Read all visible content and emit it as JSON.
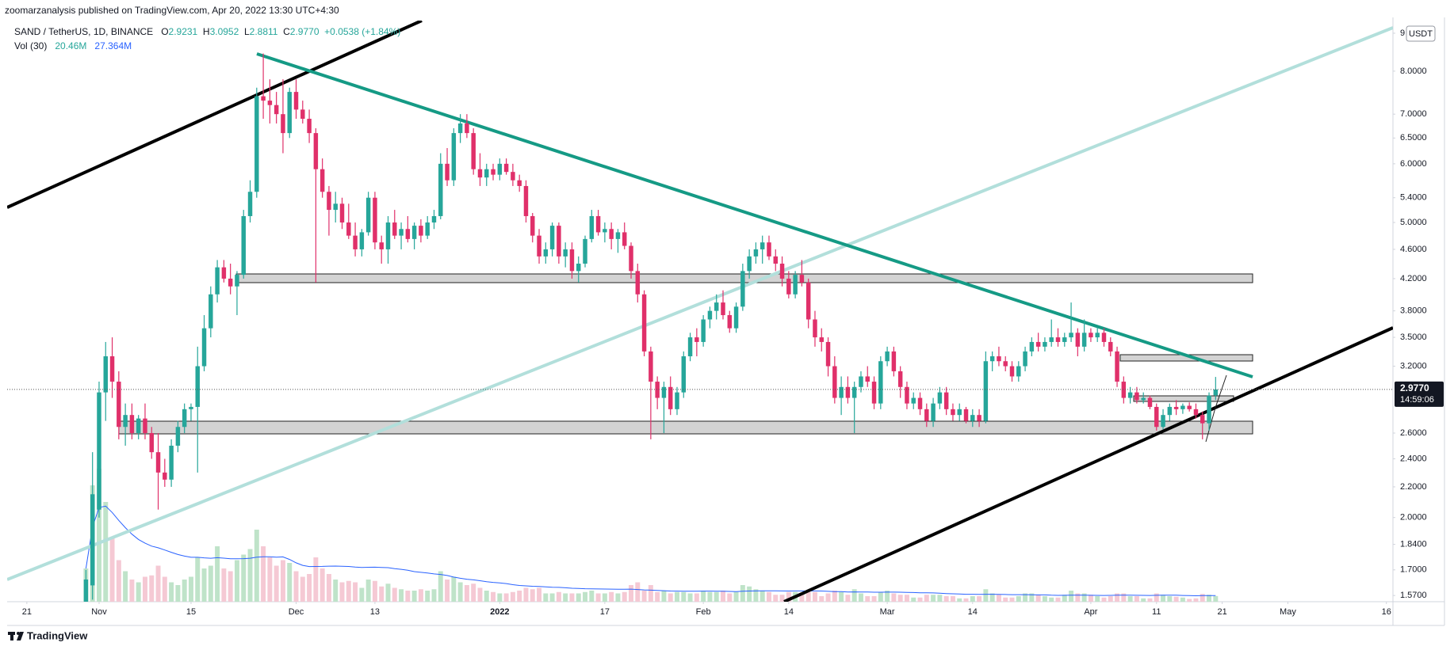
{
  "header": {
    "published": "zoomarzanalysis published on TradingView.com, Apr 20, 2022 13:30 UTC+4:30",
    "brand": "TradingView"
  },
  "chart_data": {
    "type": "candlestick",
    "title": "SAND / TetherUS, 1D, BINANCE",
    "ohlc_labels": [
      "O",
      "H",
      "L",
      "C"
    ],
    "change": "+0.0538 (+1.84%)",
    "last_price_label": "2.9770",
    "countdown": "14:59:06",
    "currency": "USDT",
    "log_scale": true,
    "up_color": "#26a69a",
    "down_color": "#e0306a",
    "xlim": [
      "2021-10-18",
      "2022-05-17"
    ],
    "xticks": [
      {
        "value": "2021-10-21",
        "label": "21"
      },
      {
        "value": "2021-11-01",
        "label": "Nov"
      },
      {
        "value": "2021-11-15",
        "label": "15"
      },
      {
        "value": "2021-12-01",
        "label": "Dec"
      },
      {
        "value": "2021-12-13",
        "label": "13"
      },
      {
        "value": "2022-01-01",
        "label": "2022"
      },
      {
        "value": "2022-01-17",
        "label": "17"
      },
      {
        "value": "2022-02-01",
        "label": "Feb"
      },
      {
        "value": "2022-02-14",
        "label": "14"
      },
      {
        "value": "2022-03-01",
        "label": "Mar"
      },
      {
        "value": "2022-03-14",
        "label": "14"
      },
      {
        "value": "2022-04-01",
        "label": "Apr"
      },
      {
        "value": "2022-04-11",
        "label": "11"
      },
      {
        "value": "2022-04-21",
        "label": "21"
      },
      {
        "value": "2022-05-01",
        "label": "May"
      },
      {
        "value": "2022-05-16",
        "label": "16"
      }
    ],
    "ylim": [
      1.54,
      9.36
    ],
    "yticks": [
      9,
      {
        "value": 8,
        "label": "8.0000"
      },
      {
        "value": 7,
        "label": "7.0000"
      },
      {
        "value": 6.5,
        "label": "6.5000"
      },
      {
        "value": 6,
        "label": "6.0000"
      },
      {
        "value": 5.4,
        "label": "5.4000"
      },
      {
        "value": 5,
        "label": "5.0000"
      },
      {
        "value": 4.6,
        "label": "4.6000"
      },
      {
        "value": 4.2,
        "label": "4.2000"
      },
      {
        "value": 3.8,
        "label": "3.8000"
      },
      {
        "value": 3.5,
        "label": "3.5000"
      },
      {
        "value": 3.2,
        "label": "3.2000"
      },
      {
        "value": 2.6,
        "label": "2.6000"
      },
      {
        "value": 2.4,
        "label": "2.4000"
      },
      {
        "value": 2.2,
        "label": "2.2000"
      },
      {
        "value": 2,
        "label": "2.0000"
      },
      {
        "value": 1.84,
        "label": "1.8400"
      },
      {
        "value": 1.7,
        "label": "1.7000"
      },
      {
        "value": 1.57,
        "label": "1.5700"
      }
    ],
    "x": [
      "2021-10-30",
      "2021-10-31",
      "2021-11-01",
      "2021-11-02",
      "2021-11-03",
      "2021-11-04",
      "2021-11-05",
      "2021-11-06",
      "2021-11-07",
      "2021-11-08",
      "2021-11-09",
      "2021-11-10",
      "2021-11-11",
      "2021-11-12",
      "2021-11-13",
      "2021-11-14",
      "2021-11-15",
      "2021-11-16",
      "2021-11-17",
      "2021-11-18",
      "2021-11-19",
      "2021-11-20",
      "2021-11-21",
      "2021-11-22",
      "2021-11-23",
      "2021-11-24",
      "2021-11-25",
      "2021-11-26",
      "2021-11-27",
      "2021-11-28",
      "2021-11-29",
      "2021-11-30",
      "2021-12-01",
      "2021-12-02",
      "2021-12-03",
      "2021-12-04",
      "2021-12-05",
      "2021-12-06",
      "2021-12-07",
      "2021-12-08",
      "2021-12-09",
      "2021-12-10",
      "2021-12-11",
      "2021-12-12",
      "2021-12-13",
      "2021-12-14",
      "2021-12-15",
      "2021-12-16",
      "2021-12-17",
      "2021-12-18",
      "2021-12-19",
      "2021-12-20",
      "2021-12-21",
      "2021-12-22",
      "2021-12-23",
      "2021-12-24",
      "2021-12-25",
      "2021-12-26",
      "2021-12-27",
      "2021-12-28",
      "2021-12-29",
      "2021-12-30",
      "2021-12-31",
      "2022-01-01",
      "2022-01-02",
      "2022-01-03",
      "2022-01-04",
      "2022-01-05",
      "2022-01-06",
      "2022-01-07",
      "2022-01-08",
      "2022-01-09",
      "2022-01-10",
      "2022-01-11",
      "2022-01-12",
      "2022-01-13",
      "2022-01-14",
      "2022-01-15",
      "2022-01-16",
      "2022-01-17",
      "2022-01-18",
      "2022-01-19",
      "2022-01-20",
      "2022-01-21",
      "2022-01-22",
      "2022-01-23",
      "2022-01-24",
      "2022-01-25",
      "2022-01-26",
      "2022-01-27",
      "2022-01-28",
      "2022-01-29",
      "2022-01-30",
      "2022-01-31",
      "2022-02-01",
      "2022-02-02",
      "2022-02-03",
      "2022-02-04",
      "2022-02-05",
      "2022-02-06",
      "2022-02-07",
      "2022-02-08",
      "2022-02-09",
      "2022-02-10",
      "2022-02-11",
      "2022-02-12",
      "2022-02-13",
      "2022-02-14",
      "2022-02-15",
      "2022-02-16",
      "2022-02-17",
      "2022-02-18",
      "2022-02-19",
      "2022-02-20",
      "2022-02-21",
      "2022-02-22",
      "2022-02-23",
      "2022-02-24",
      "2022-02-25",
      "2022-02-26",
      "2022-02-27",
      "2022-02-28",
      "2022-03-01",
      "2022-03-02",
      "2022-03-03",
      "2022-03-04",
      "2022-03-05",
      "2022-03-06",
      "2022-03-07",
      "2022-03-08",
      "2022-03-09",
      "2022-03-10",
      "2022-03-11",
      "2022-03-12",
      "2022-03-13",
      "2022-03-14",
      "2022-03-15",
      "2022-03-16",
      "2022-03-17",
      "2022-03-18",
      "2022-03-19",
      "2022-03-20",
      "2022-03-21",
      "2022-03-22",
      "2022-03-23",
      "2022-03-24",
      "2022-03-25",
      "2022-03-26",
      "2022-03-27",
      "2022-03-28",
      "2022-03-29",
      "2022-03-30",
      "2022-03-31",
      "2022-04-01",
      "2022-04-02",
      "2022-04-03",
      "2022-04-04",
      "2022-04-05",
      "2022-04-06",
      "2022-04-07",
      "2022-04-08",
      "2022-04-09",
      "2022-04-10",
      "2022-04-11",
      "2022-04-12",
      "2022-04-13",
      "2022-04-14",
      "2022-04-15",
      "2022-04-16",
      "2022-04-17",
      "2022-04-18",
      "2022-04-19",
      "2022-04-20"
    ],
    "open": [
      1.45,
      1.62,
      2.05,
      2.95,
      3.3,
      3.05,
      2.65,
      2.75,
      2.6,
      2.72,
      2.6,
      2.45,
      2.3,
      2.25,
      2.5,
      2.65,
      2.8,
      2.82,
      3.2,
      3.6,
      4.0,
      4.35,
      4.2,
      4.1,
      4.25,
      5.1,
      5.5,
      7.4,
      7.3,
      7.2,
      7.0,
      6.6,
      7.5,
      7.1,
      6.9,
      6.6,
      5.9,
      5.5,
      5.2,
      5.3,
      5.0,
      4.8,
      4.6,
      4.85,
      5.4,
      4.7,
      4.6,
      5.0,
      4.8,
      4.9,
      4.75,
      4.95,
      4.8,
      5.0,
      5.1,
      6.0,
      5.7,
      6.6,
      6.8,
      6.6,
      5.9,
      5.75,
      5.9,
      5.8,
      6.0,
      5.85,
      5.7,
      5.6,
      5.1,
      4.8,
      4.5,
      4.6,
      4.95,
      4.5,
      4.6,
      4.3,
      4.4,
      4.75,
      5.1,
      4.85,
      4.9,
      4.75,
      4.85,
      4.65,
      4.3,
      4.0,
      3.35,
      3.05,
      2.9,
      3.0,
      2.8,
      2.95,
      3.3,
      3.5,
      3.45,
      3.7,
      3.8,
      3.9,
      3.75,
      3.6,
      3.85,
      4.3,
      4.5,
      4.6,
      4.7,
      4.5,
      4.4,
      4.2,
      4.0,
      4.25,
      4.15,
      3.7,
      3.5,
      3.45,
      3.2,
      2.9,
      3.0,
      2.9,
      3.0,
      3.1,
      3.05,
      2.85,
      3.25,
      3.35,
      3.15,
      3.0,
      2.85,
      2.9,
      2.8,
      2.7,
      2.85,
      2.95,
      2.8,
      2.75,
      2.8,
      2.7,
      2.75,
      2.7,
      3.25,
      3.3,
      3.25,
      3.2,
      3.1,
      3.2,
      3.35,
      3.45,
      3.4,
      3.45,
      3.5,
      3.45,
      3.5,
      3.55,
      3.4,
      3.55,
      3.5,
      3.55,
      3.45,
      3.35,
      3.05,
      2.9,
      2.95,
      2.88,
      2.9,
      2.82,
      2.65,
      2.75,
      2.82,
      2.8,
      2.83,
      2.8,
      2.75,
      2.68,
      2.9231
    ],
    "high": [
      1.7,
      2.45,
      3.05,
      3.45,
      3.5,
      3.15,
      2.85,
      2.85,
      2.75,
      2.85,
      2.65,
      2.6,
      2.4,
      2.55,
      2.7,
      2.85,
      2.85,
      3.4,
      3.75,
      4.1,
      4.45,
      4.45,
      4.4,
      4.3,
      5.2,
      5.7,
      7.6,
      8.45,
      7.8,
      7.5,
      7.8,
      7.6,
      7.8,
      7.3,
      7.1,
      6.7,
      6.1,
      5.6,
      5.5,
      5.4,
      5.3,
      5.0,
      4.9,
      5.5,
      5.5,
      4.8,
      5.1,
      5.2,
      5.0,
      5.1,
      5.0,
      5.05,
      5.1,
      5.2,
      6.2,
      6.3,
      6.7,
      7.0,
      7.0,
      6.7,
      6.2,
      6.0,
      6.0,
      6.1,
      6.1,
      6.0,
      5.8,
      5.7,
      5.15,
      4.9,
      4.7,
      5.0,
      5.0,
      4.7,
      4.7,
      4.5,
      4.8,
      5.2,
      5.2,
      5.0,
      5.0,
      4.9,
      5.0,
      4.7,
      4.4,
      4.05,
      3.4,
      3.1,
      3.05,
      3.1,
      3.0,
      3.35,
      3.55,
      3.6,
      3.75,
      3.85,
      4.0,
      4.05,
      3.8,
      3.9,
      4.4,
      4.6,
      4.7,
      4.8,
      4.8,
      4.6,
      4.5,
      4.3,
      4.3,
      4.45,
      4.2,
      3.8,
      3.6,
      3.5,
      3.3,
      3.1,
      3.1,
      3.05,
      3.15,
      3.2,
      3.1,
      3.3,
      3.4,
      3.4,
      3.2,
      3.05,
      2.95,
      2.95,
      2.85,
      2.9,
      3.0,
      3.0,
      2.85,
      2.85,
      2.82,
      2.8,
      2.8,
      3.35,
      3.35,
      3.4,
      3.3,
      3.25,
      3.25,
      3.4,
      3.5,
      3.55,
      3.5,
      3.7,
      3.6,
      3.55,
      3.9,
      3.6,
      3.7,
      3.6,
      3.6,
      3.6,
      3.5,
      3.4,
      3.1,
      3.0,
      3.0,
      2.95,
      2.92,
      2.85,
      2.8,
      2.85,
      2.88,
      2.85,
      2.86,
      2.85,
      2.78,
      2.95,
      3.0952
    ],
    "low": [
      1.4,
      1.55,
      2.0,
      2.7,
      2.9,
      2.55,
      2.5,
      2.55,
      2.55,
      2.55,
      2.4,
      2.05,
      2.2,
      2.2,
      2.45,
      2.6,
      2.7,
      2.3,
      3.15,
      3.5,
      3.9,
      4.15,
      4.0,
      3.75,
      4.2,
      5.0,
      5.4,
      6.9,
      6.8,
      6.8,
      6.2,
      6.5,
      6.9,
      6.8,
      6.4,
      4.15,
      5.4,
      4.8,
      5.0,
      4.9,
      4.75,
      4.5,
      4.5,
      4.8,
      4.6,
      4.4,
      4.4,
      4.75,
      4.6,
      4.7,
      4.6,
      4.7,
      4.75,
      4.9,
      5.05,
      5.6,
      5.6,
      6.4,
      6.5,
      5.8,
      5.6,
      5.6,
      5.7,
      5.7,
      5.8,
      5.6,
      5.5,
      5.0,
      4.7,
      4.4,
      4.4,
      4.5,
      4.4,
      4.35,
      4.2,
      4.15,
      4.35,
      4.7,
      4.8,
      4.7,
      4.6,
      4.55,
      4.6,
      4.2,
      3.9,
      3.3,
      2.55,
      2.8,
      2.6,
      2.75,
      2.75,
      2.9,
      3.25,
      3.3,
      3.4,
      3.6,
      3.7,
      3.7,
      3.55,
      3.55,
      3.8,
      4.2,
      4.4,
      4.4,
      4.45,
      4.3,
      4.1,
      3.95,
      3.95,
      4.1,
      3.6,
      3.4,
      3.35,
      3.1,
      2.85,
      2.75,
      2.85,
      2.6,
      2.95,
      3.0,
      2.8,
      2.8,
      3.2,
      3.1,
      2.9,
      2.8,
      2.8,
      2.75,
      2.65,
      2.65,
      2.8,
      2.75,
      2.7,
      2.7,
      2.68,
      2.65,
      2.65,
      2.68,
      3.15,
      3.2,
      3.15,
      3.05,
      3.05,
      3.15,
      3.3,
      3.35,
      3.35,
      3.4,
      3.4,
      3.4,
      3.45,
      3.3,
      3.35,
      3.45,
      3.45,
      3.4,
      3.3,
      3.0,
      2.85,
      2.85,
      2.85,
      2.85,
      2.8,
      2.62,
      2.63,
      2.7,
      2.75,
      2.76,
      2.78,
      2.72,
      2.55,
      2.62,
      2.8811
    ],
    "close": [
      1.65,
      2.15,
      2.95,
      3.3,
      3.05,
      2.65,
      2.75,
      2.6,
      2.72,
      2.6,
      2.45,
      2.3,
      2.25,
      2.5,
      2.65,
      2.8,
      2.82,
      3.2,
      3.6,
      4.0,
      4.35,
      4.2,
      4.1,
      4.25,
      5.1,
      5.5,
      7.4,
      7.3,
      7.2,
      7.0,
      6.6,
      7.5,
      7.1,
      6.9,
      6.6,
      5.9,
      5.5,
      5.2,
      5.3,
      5.0,
      4.8,
      4.6,
      4.85,
      5.4,
      4.7,
      4.6,
      5.0,
      4.8,
      4.9,
      4.75,
      4.95,
      4.8,
      5.0,
      5.1,
      6.0,
      5.7,
      6.6,
      6.8,
      6.6,
      5.9,
      5.75,
      5.9,
      5.8,
      6.0,
      5.85,
      5.7,
      5.6,
      5.1,
      4.8,
      4.5,
      4.6,
      4.95,
      4.5,
      4.6,
      4.3,
      4.4,
      4.75,
      5.1,
      4.85,
      4.9,
      4.75,
      4.85,
      4.65,
      4.3,
      4.0,
      3.35,
      3.05,
      2.9,
      3.0,
      2.8,
      2.95,
      3.3,
      3.5,
      3.45,
      3.7,
      3.8,
      3.9,
      3.75,
      3.6,
      3.85,
      4.3,
      4.5,
      4.6,
      4.7,
      4.5,
      4.4,
      4.2,
      4.0,
      4.25,
      4.15,
      3.7,
      3.5,
      3.45,
      3.2,
      2.9,
      3.0,
      2.9,
      3.0,
      3.1,
      3.05,
      2.85,
      3.25,
      3.35,
      3.15,
      3.0,
      2.85,
      2.9,
      2.8,
      2.7,
      2.85,
      2.95,
      2.8,
      2.75,
      2.8,
      2.7,
      2.75,
      2.7,
      3.25,
      3.3,
      3.25,
      3.2,
      3.1,
      3.2,
      3.35,
      3.45,
      3.4,
      3.45,
      3.5,
      3.45,
      3.5,
      3.55,
      3.4,
      3.55,
      3.5,
      3.55,
      3.45,
      3.35,
      3.05,
      2.9,
      2.95,
      2.88,
      2.9,
      2.82,
      2.65,
      2.75,
      2.82,
      2.8,
      2.83,
      2.8,
      2.75,
      2.68,
      2.92,
      2.977
    ],
    "volume": {
      "name": "Vol (30)",
      "last_label": "20.46M",
      "ma_label": "27.364M",
      "up_color": "#bfe3c9",
      "down_color": "#f5c9d4",
      "ma_color": "#2962ff",
      "values": [
        120,
        420,
        480,
        360,
        230,
        150,
        110,
        80,
        70,
        90,
        95,
        130,
        90,
        70,
        60,
        80,
        90,
        160,
        120,
        130,
        200,
        120,
        110,
        150,
        170,
        190,
        260,
        200,
        160,
        130,
        150,
        140,
        110,
        90,
        100,
        160,
        120,
        100,
        80,
        70,
        75,
        70,
        50,
        80,
        75,
        55,
        65,
        50,
        45,
        40,
        40,
        45,
        40,
        45,
        110,
        80,
        90,
        70,
        60,
        65,
        50,
        40,
        35,
        30,
        30,
        35,
        40,
        50,
        45,
        50,
        30,
        30,
        35,
        30,
        30,
        30,
        35,
        40,
        30,
        30,
        35,
        30,
        35,
        60,
        70,
        40,
        60,
        35,
        40,
        30,
        35,
        35,
        30,
        30,
        40,
        35,
        35,
        40,
        30,
        35,
        60,
        55,
        45,
        40,
        35,
        25,
        25,
        35,
        35,
        30,
        35,
        35,
        20,
        30,
        40,
        35,
        25,
        45,
        30,
        20,
        20,
        35,
        40,
        30,
        25,
        25,
        15,
        15,
        25,
        25,
        25,
        20,
        20,
        12,
        12,
        20,
        20,
        45,
        30,
        25,
        15,
        15,
        20,
        30,
        30,
        25,
        20,
        15,
        15,
        25,
        40,
        30,
        30,
        25,
        20,
        15,
        20,
        30,
        30,
        20,
        20,
        12,
        12,
        30,
        25,
        20,
        18,
        15,
        10,
        12,
        28,
        25,
        20.46
      ]
    }
  }
}
